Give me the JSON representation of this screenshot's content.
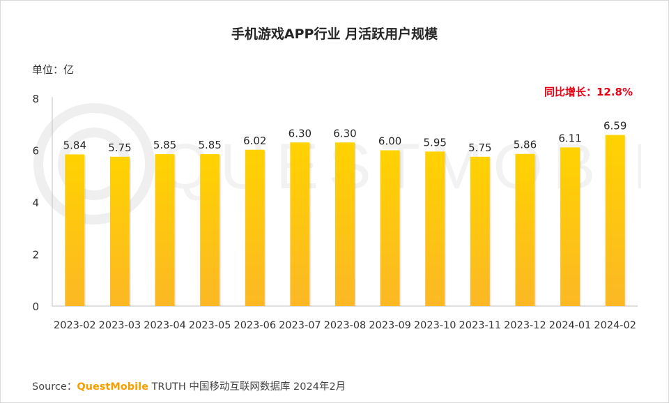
{
  "chart_data": {
    "type": "bar",
    "title": "手机游戏APP行业 月活跃用户规模",
    "unit_label": "单位：亿",
    "annotation": "同比增长：12.8%",
    "categories": [
      "2023-02",
      "2023-03",
      "2023-04",
      "2023-05",
      "2023-06",
      "2023-07",
      "2023-08",
      "2023-09",
      "2023-10",
      "2023-11",
      "2023-12",
      "2024-01",
      "2024-02"
    ],
    "values": [
      5.84,
      5.75,
      5.85,
      5.85,
      6.02,
      6.3,
      6.3,
      6.0,
      5.95,
      5.75,
      5.86,
      6.11,
      6.59
    ],
    "value_labels": [
      "5.84",
      "5.75",
      "5.85",
      "5.85",
      "6.02",
      "6.30",
      "6.30",
      "6.00",
      "5.95",
      "5.75",
      "5.86",
      "6.11",
      "6.59"
    ],
    "ylim": [
      0,
      8
    ],
    "yticks": [
      0,
      2,
      4,
      6,
      8
    ],
    "grid": false,
    "bar_color_top": "#ffd200",
    "bar_color_bottom": "#fcb825"
  },
  "source": {
    "prefix": "Source：",
    "brand": "QuestMobile",
    "rest": " TRUTH 中国移动互联网数据库 2024年2月"
  },
  "watermark_text": "QUESTMOBILE"
}
